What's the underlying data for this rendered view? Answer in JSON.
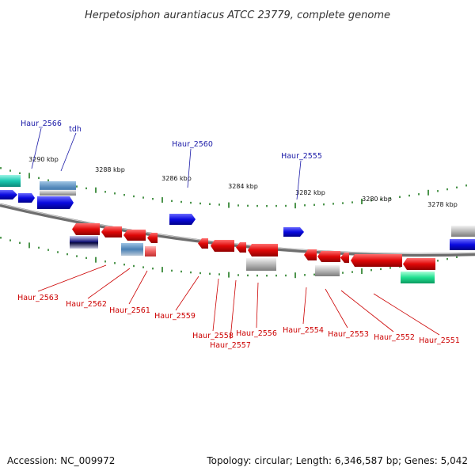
{
  "title": "Herpetosiphon aurantiacus ATCC 23779, complete genome",
  "footer": {
    "accession": "Accession: NC_009972",
    "topology": "Topology: circular; Length: 6,346,587 bp; Genes: 5,042"
  },
  "colors": {
    "backbone": "#7a7a7a",
    "tick": "#1f7a1f",
    "gene_forward": "#1010e0",
    "gene_reverse": "#e01010",
    "label_forward": "#1a1aa8",
    "label_reverse": "#cc0000"
  },
  "scale_labels": [
    "3290 kbp",
    "3288 kbp",
    "3286 kbp",
    "3284 kbp",
    "3282 kbp",
    "3280 kbp",
    "3278 kbp"
  ],
  "forward_labels": [
    "Haur_2566",
    "tdh",
    "Haur_2560",
    "Haur_2555"
  ],
  "reverse_labels": [
    "Haur_2563",
    "Haur_2562",
    "Haur_2561",
    "Haur_2559",
    "Haur_2558",
    "Haur_2557",
    "Haur_2556",
    "Haur_2554",
    "Haur_2553",
    "Haur_2552",
    "Haur_2551"
  ]
}
